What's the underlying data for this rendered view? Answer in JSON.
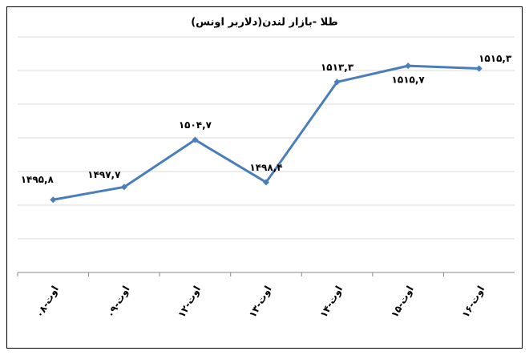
{
  "chart_data": {
    "type": "line",
    "title": "طلا -بازار لندن(دلاربر اونس)",
    "categories": [
      "۰۸-اوت",
      "۰۹-اوت",
      "۱۲-اوت",
      "۱۳-اوت",
      "۱۴-اوت",
      "۱۵-اوت",
      "۱۶-اوت"
    ],
    "series": [
      {
        "name": "طلا",
        "color": "#4a7ebb",
        "values": [
          1495.8,
          1497.7,
          1504.7,
          1498.4,
          1513.3,
          1515.7,
          1515.3
        ],
        "value_labels": [
          "۱۴۹۵,۸",
          "۱۴۹۷,۷",
          "۱۵۰۴,۷",
          "۱۴۹۸,۴",
          "۱۵۱۳,۳",
          "۱۵۱۵,۷",
          "۱۵۱۵,۳"
        ]
      }
    ],
    "ylim": [
      1485,
      1520
    ],
    "yticks": [
      1485,
      1490,
      1495,
      1500,
      1505,
      1510,
      1515,
      1520
    ],
    "grid": true
  }
}
